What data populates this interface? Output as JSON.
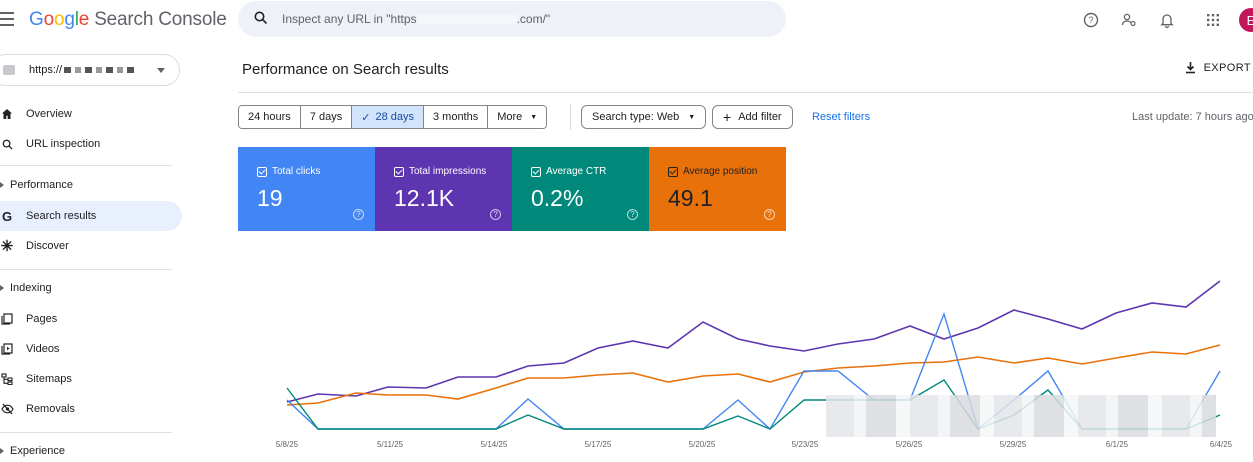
{
  "app": {
    "logo_g1": "G",
    "logo_g2": "o",
    "logo_g3": "o",
    "logo_g4": "g",
    "logo_g5": "l",
    "logo_g6": "e",
    "logo_rest": " Search Console"
  },
  "search": {
    "placeholder_start": "Inspect any URL in \"https",
    "placeholder_end": ".com/\""
  },
  "avatar_letter": "E",
  "property": {
    "label": "https://"
  },
  "sidebar": {
    "overview": "Overview",
    "url_inspection": "URL inspection",
    "performance": "Performance",
    "search_results": "Search results",
    "discover": "Discover",
    "indexing": "Indexing",
    "pages": "Pages",
    "videos": "Videos",
    "sitemaps": "Sitemaps",
    "removals": "Removals",
    "experience": "Experience"
  },
  "page_title": "Performance on Search results",
  "export_label": "EXPORT",
  "date_ranges": [
    "24 hours",
    "7 days",
    "28 days",
    "3 months",
    "More"
  ],
  "search_type": "Search type: Web",
  "add_filter": "Add filter",
  "reset_filters": "Reset filters",
  "last_update": "Last update: 7 hours ago",
  "metrics": {
    "clicks": {
      "label": "Total clicks",
      "value": "19",
      "color": "#4285f4"
    },
    "impressions": {
      "label": "Total impressions",
      "value": "12.1K",
      "color": "#5e35b1"
    },
    "ctr": {
      "label": "Average CTR",
      "value": "0.2%",
      "color": "#00897b"
    },
    "position": {
      "label": "Average position",
      "value": "49.1",
      "color": "#e8710a"
    }
  },
  "x_ticks": [
    "5/8/25",
    "5/11/25",
    "5/14/25",
    "5/17/25",
    "5/20/25",
    "5/23/25",
    "5/26/25",
    "5/29/25",
    "6/1/25",
    "6/4/25"
  ]
}
